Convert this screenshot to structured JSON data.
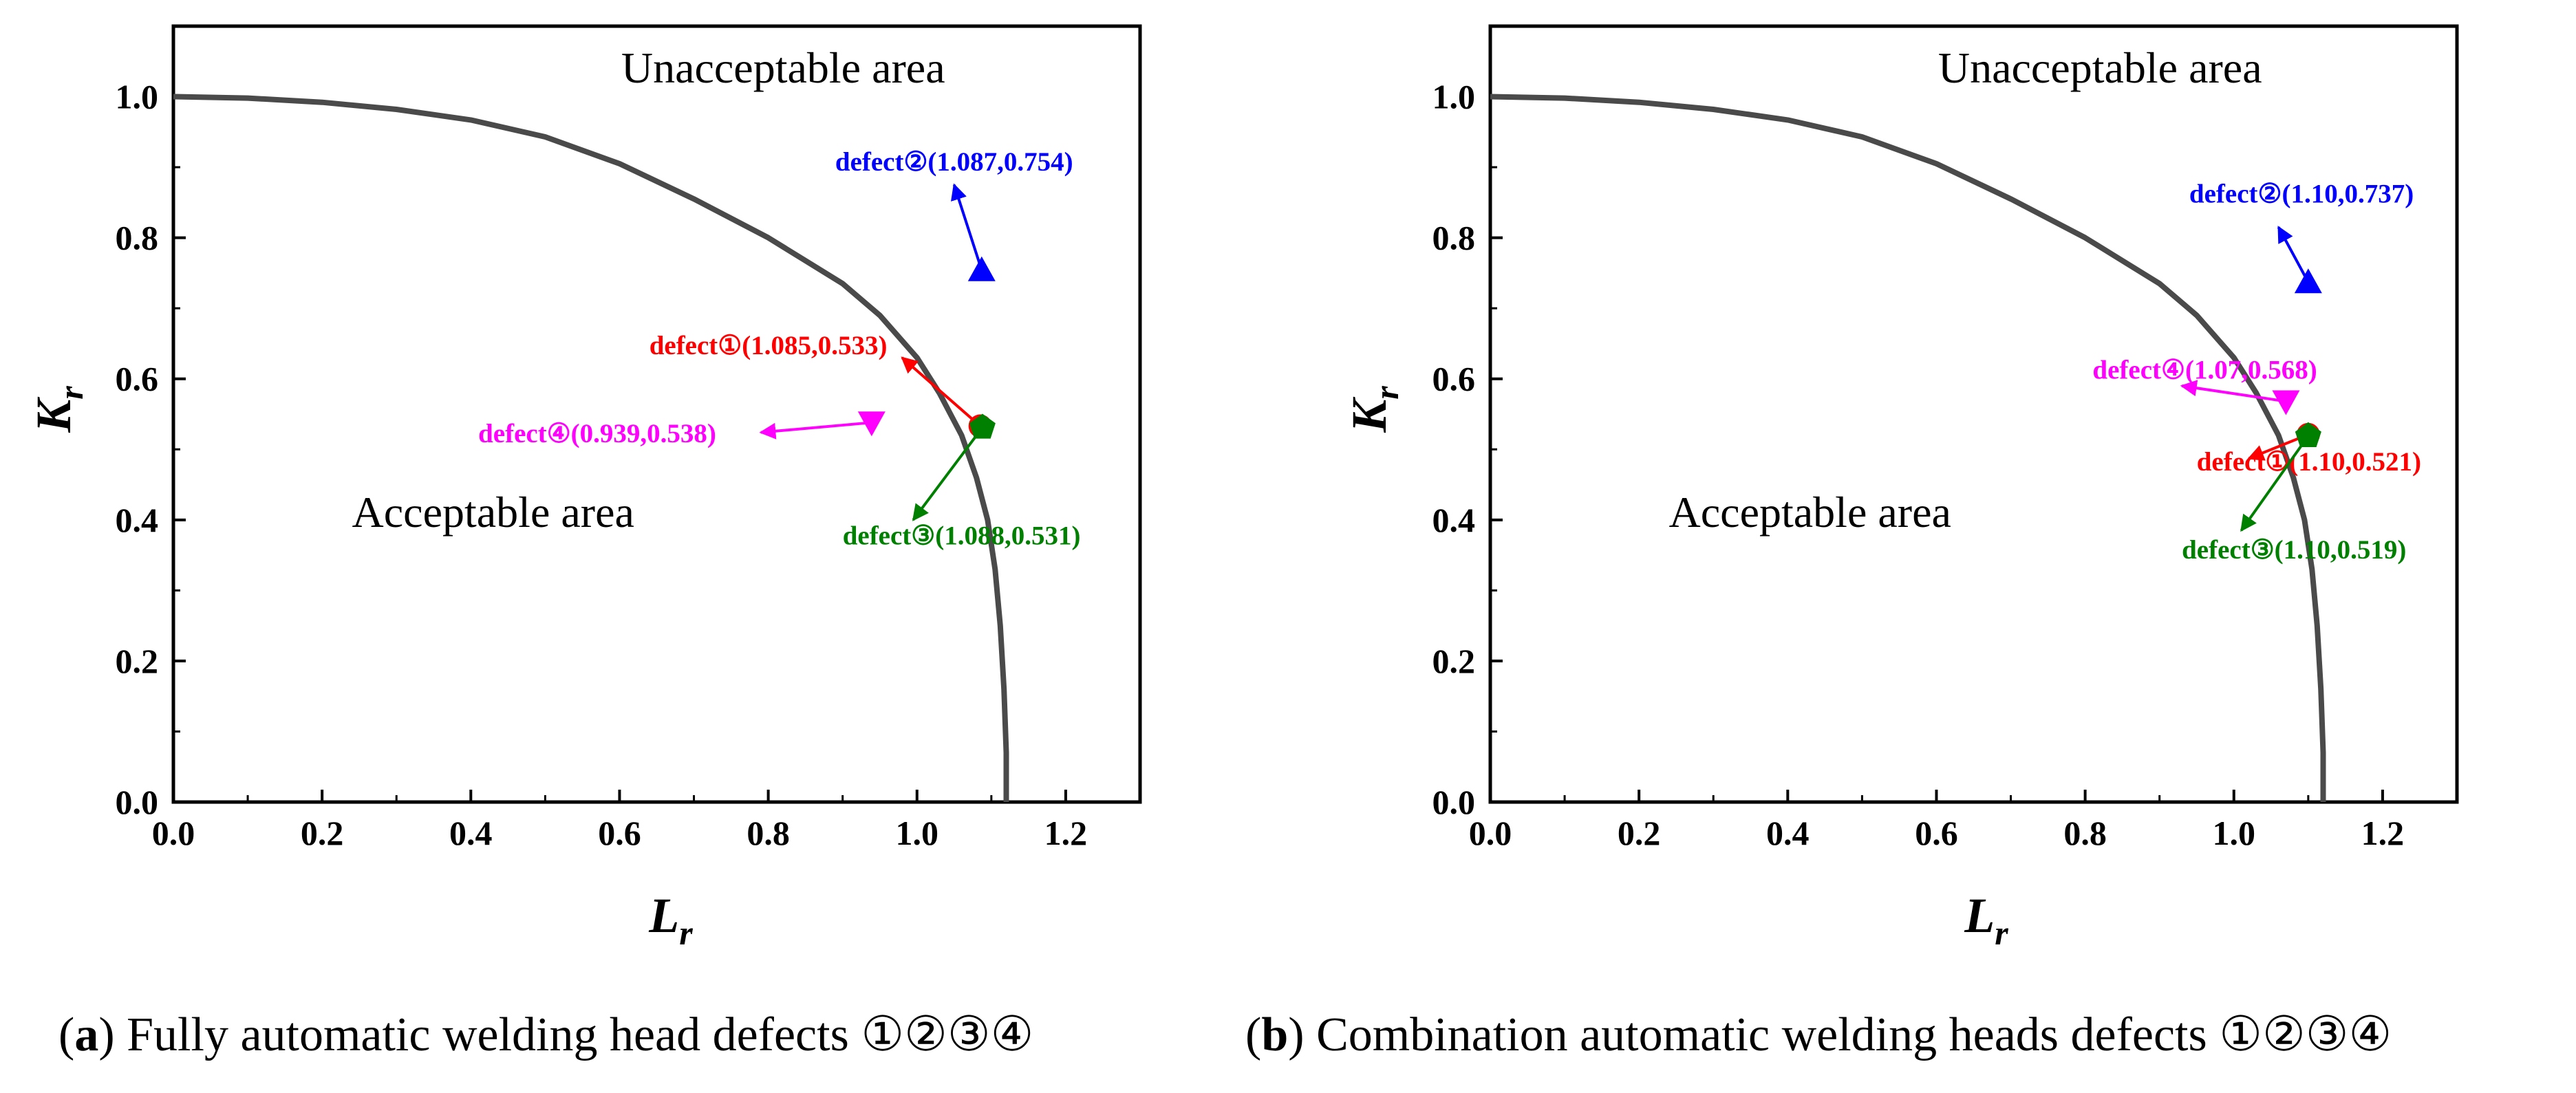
{
  "chart_data": [
    {
      "type": "line",
      "xlabel": "L",
      "xlabel_sub": "r",
      "ylabel": "K",
      "ylabel_sub": "r",
      "xlim": [
        0.0,
        1.3
      ],
      "ylim": [
        0.0,
        1.1
      ],
      "xticks": [
        0.0,
        0.2,
        0.4,
        0.6,
        0.8,
        1.0,
        1.2
      ],
      "xtick_labels": [
        "0.0",
        "0.2",
        "0.4",
        "0.6",
        "0.8",
        "1.0",
        "1.2"
      ],
      "yticks": [
        0.0,
        0.2,
        0.4,
        0.6,
        0.8,
        1.0
      ],
      "ytick_labels": [
        "0.0",
        "0.2",
        "0.4",
        "0.6",
        "0.8",
        "1.0"
      ],
      "grid": false,
      "region_labels": {
        "unacceptable": {
          "text": "Unacceptable area",
          "x": 0.82,
          "y": 1.02
        },
        "acceptable": {
          "text": "Acceptable area",
          "x": 0.43,
          "y": 0.39
        }
      },
      "fad_curve": {
        "color": "#4a4a4a",
        "x": [
          0.0,
          0.1,
          0.2,
          0.3,
          0.4,
          0.5,
          0.6,
          0.7,
          0.8,
          0.9,
          0.95,
          1.0,
          1.03,
          1.06,
          1.08,
          1.095,
          1.105,
          1.112,
          1.117,
          1.12,
          1.12
        ],
        "y": [
          1.0,
          0.998,
          0.992,
          0.982,
          0.967,
          0.943,
          0.905,
          0.855,
          0.8,
          0.735,
          0.69,
          0.63,
          0.58,
          0.52,
          0.46,
          0.4,
          0.33,
          0.25,
          0.16,
          0.07,
          0.0
        ]
      },
      "defects": [
        {
          "label": "defect①(1.085,0.533)",
          "color": "#ff0000",
          "marker": "circle",
          "x": 1.085,
          "y": 0.533,
          "label_x": 0.64,
          "label_y": 0.635,
          "arrow_to": [
            0.98,
            0.63
          ]
        },
        {
          "label": "defect②(1.087,0.754)",
          "color": "#0000ff",
          "marker": "triangle-up",
          "x": 1.087,
          "y": 0.754,
          "label_x": 0.89,
          "label_y": 0.895,
          "arrow_to": [
            1.05,
            0.875
          ]
        },
        {
          "label": "defect③(1.088,0.531)",
          "color": "#008000",
          "marker": "pentagon",
          "x": 1.088,
          "y": 0.531,
          "label_x": 0.9,
          "label_y": 0.365,
          "arrow_to": [
            0.995,
            0.4
          ]
        },
        {
          "label": "defect④(0.939,0.538)",
          "color": "#ff00ff",
          "marker": "triangle-down",
          "x": 0.939,
          "y": 0.538,
          "label_x": 0.41,
          "label_y": 0.51,
          "arrow_to": [
            0.79,
            0.524
          ]
        }
      ]
    },
    {
      "type": "line",
      "xlabel": "L",
      "xlabel_sub": "r",
      "ylabel": "K",
      "ylabel_sub": "r",
      "xlim": [
        0.0,
        1.3
      ],
      "ylim": [
        0.0,
        1.1
      ],
      "xticks": [
        0.0,
        0.2,
        0.4,
        0.6,
        0.8,
        1.0,
        1.2
      ],
      "xtick_labels": [
        "0.0",
        "0.2",
        "0.4",
        "0.6",
        "0.8",
        "1.0",
        "1.2"
      ],
      "yticks": [
        0.0,
        0.2,
        0.4,
        0.6,
        0.8,
        1.0
      ],
      "ytick_labels": [
        "0.0",
        "0.2",
        "0.4",
        "0.6",
        "0.8",
        "1.0"
      ],
      "grid": false,
      "region_labels": {
        "unacceptable": {
          "text": "Unacceptable area",
          "x": 0.82,
          "y": 1.02
        },
        "acceptable": {
          "text": "Acceptable area",
          "x": 0.43,
          "y": 0.39
        }
      },
      "fad_curve": {
        "color": "#4a4a4a",
        "x": [
          0.0,
          0.1,
          0.2,
          0.3,
          0.4,
          0.5,
          0.6,
          0.7,
          0.8,
          0.9,
          0.95,
          1.0,
          1.03,
          1.06,
          1.08,
          1.095,
          1.105,
          1.112,
          1.117,
          1.12,
          1.12
        ],
        "y": [
          1.0,
          0.998,
          0.992,
          0.982,
          0.967,
          0.943,
          0.905,
          0.855,
          0.8,
          0.735,
          0.69,
          0.63,
          0.58,
          0.52,
          0.46,
          0.4,
          0.33,
          0.25,
          0.16,
          0.07,
          0.0
        ]
      },
      "defects": [
        {
          "label": "defect①(1.10,0.521)",
          "color": "#ff0000",
          "marker": "circle",
          "x": 1.1,
          "y": 0.521,
          "label_x": 0.95,
          "label_y": 0.47,
          "arrow_to": [
            1.02,
            0.487
          ]
        },
        {
          "label": "defect②(1.10,0.737)",
          "color": "#0000ff",
          "marker": "triangle-up",
          "x": 1.1,
          "y": 0.737,
          "label_x": 0.94,
          "label_y": 0.85,
          "arrow_to": [
            1.06,
            0.815
          ]
        },
        {
          "label": "defect③(1.10,0.519)",
          "color": "#008000",
          "marker": "pentagon",
          "x": 1.1,
          "y": 0.519,
          "label_x": 0.93,
          "label_y": 0.345,
          "arrow_to": [
            1.01,
            0.385
          ]
        },
        {
          "label": "defect④(1.07,0.568)",
          "color": "#ff00ff",
          "marker": "triangle-down",
          "x": 1.07,
          "y": 0.568,
          "label_x": 0.81,
          "label_y": 0.6,
          "arrow_to": [
            0.93,
            0.59
          ]
        }
      ]
    }
  ],
  "captions": [
    {
      "letter": "a",
      "text": "Fully automatic welding head defects ①②③④"
    },
    {
      "letter": "b",
      "text": "Combination automatic welding heads defects ①②③④"
    }
  ]
}
